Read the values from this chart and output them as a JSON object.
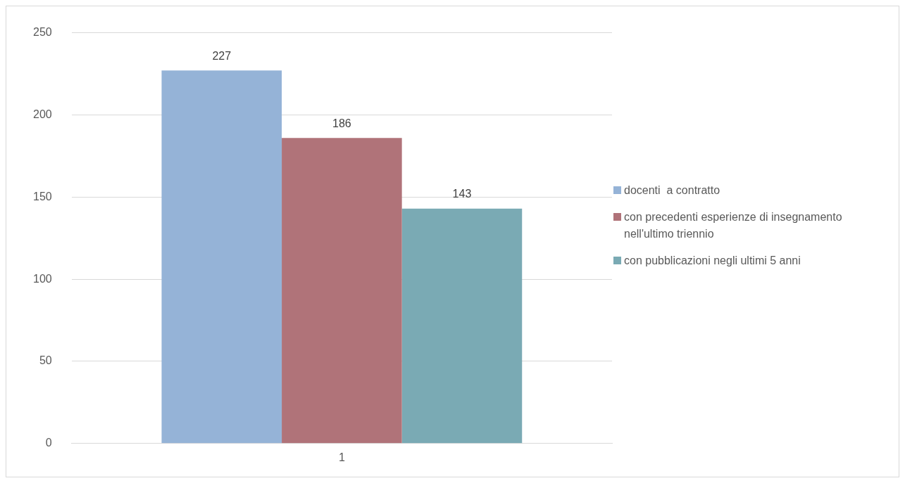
{
  "chart_data": {
    "type": "bar",
    "categories": [
      "1"
    ],
    "series": [
      {
        "name": "docenti  a contratto",
        "color": "#95b3d7",
        "values": [
          227
        ]
      },
      {
        "name": "con precedenti esperienze di insegnamento nell'ultimo triennio",
        "color": "#b07379",
        "values": [
          186
        ]
      },
      {
        "name": "con pubblicazioni negli ultimi 5 anni",
        "color": "#7aaab4",
        "values": [
          143
        ]
      }
    ],
    "ylim": [
      0,
      250
    ],
    "yticks": [
      0,
      50,
      100,
      150,
      200,
      250
    ],
    "grid": "y",
    "legend": "right",
    "data_labels": true
  }
}
